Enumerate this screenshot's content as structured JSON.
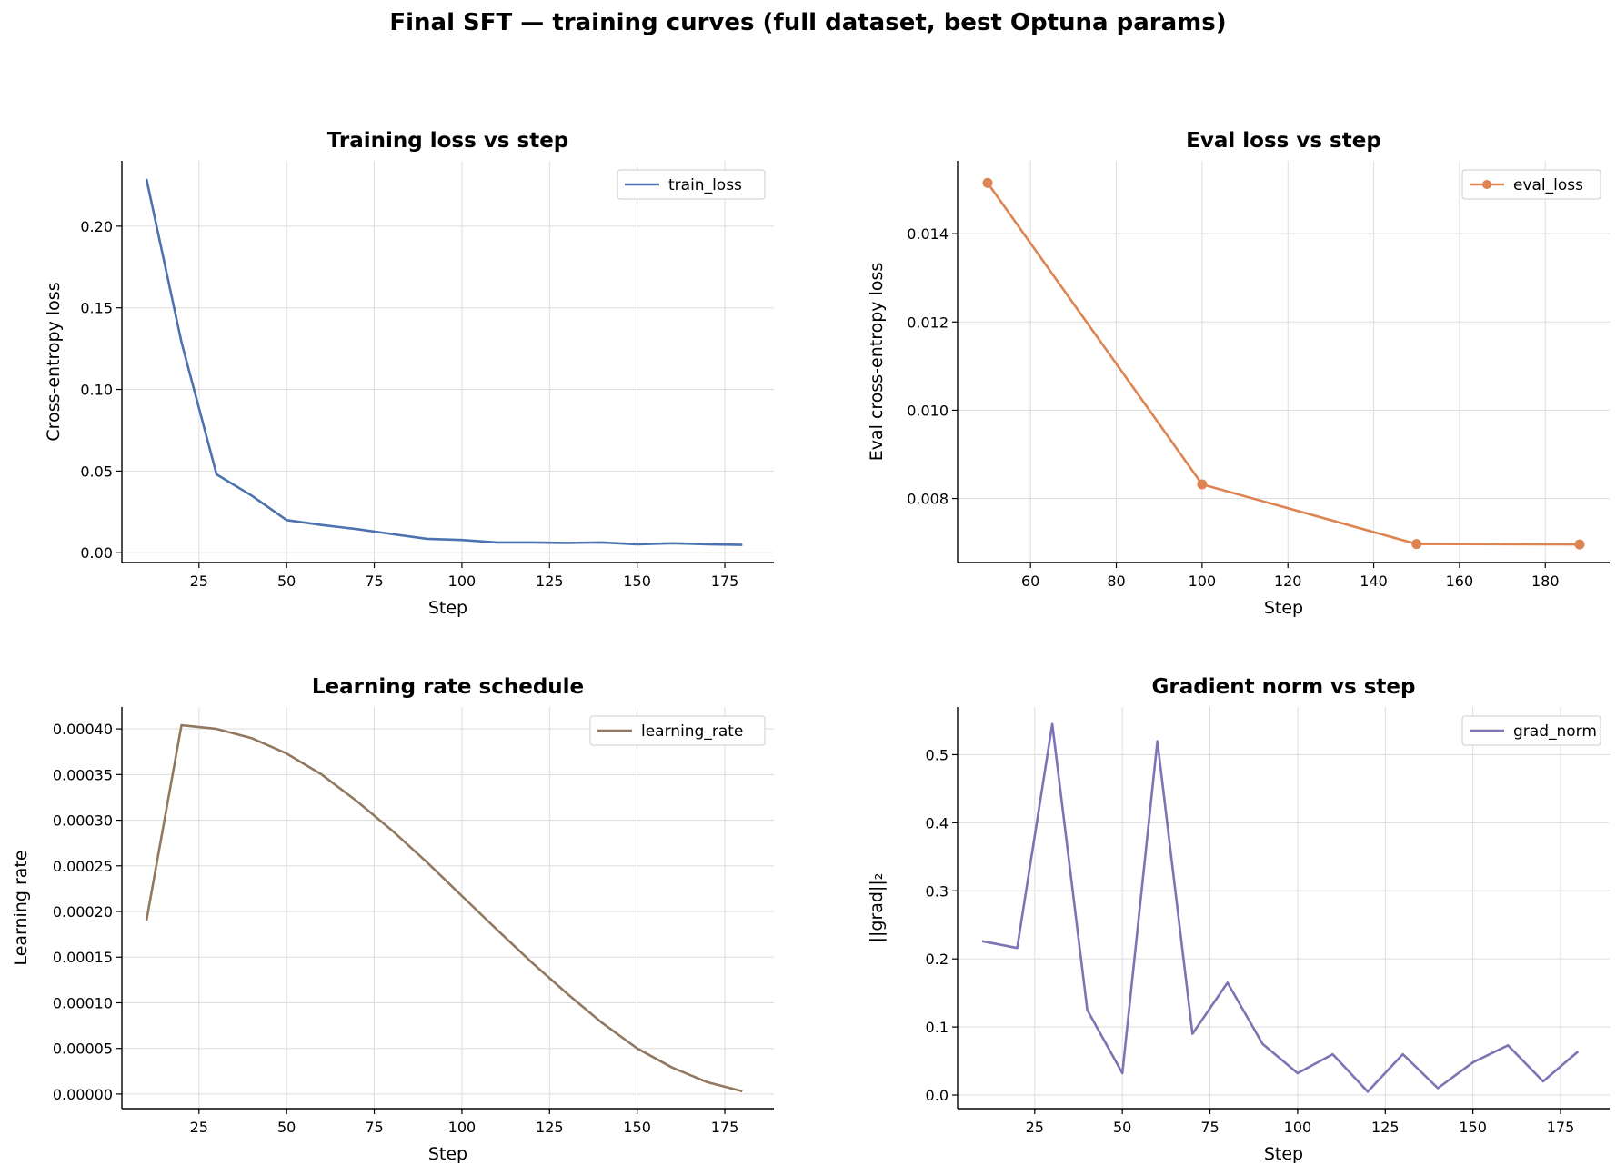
{
  "figure": {
    "title": "Final SFT — training curves (full dataset, best Optuna params)"
  },
  "chart_data": [
    {
      "type": "line",
      "title": "Training loss vs step",
      "xlabel": "Step",
      "ylabel": "Cross-entropy loss",
      "xlim": [
        3,
        189
      ],
      "ylim": [
        -0.006,
        0.24
      ],
      "xticks": [
        25,
        50,
        75,
        100,
        125,
        150,
        175
      ],
      "yticks": [
        0.0,
        0.05,
        0.1,
        0.15,
        0.2
      ],
      "ytick_decimals": 2,
      "grid": true,
      "legend": "top-right",
      "markers": false,
      "series": [
        {
          "name": "train_loss",
          "color": "#4c72b0",
          "x": [
            10,
            20,
            30,
            40,
            50,
            60,
            70,
            80,
            90,
            100,
            110,
            120,
            130,
            140,
            150,
            160,
            170,
            180
          ],
          "y": [
            0.229,
            0.129,
            0.048,
            0.035,
            0.02,
            0.017,
            0.0145,
            0.0115,
            0.0085,
            0.0078,
            0.0063,
            0.0063,
            0.006,
            0.0063,
            0.0052,
            0.0058,
            0.0052,
            0.0048
          ]
        }
      ]
    },
    {
      "type": "line",
      "title": "Eval loss vs step",
      "xlabel": "Step",
      "ylabel": "Eval cross-entropy loss",
      "xlim": [
        43,
        195
      ],
      "ylim": [
        0.00655,
        0.01565
      ],
      "xticks": [
        60,
        80,
        100,
        120,
        140,
        160,
        180
      ],
      "yticks": [
        0.008,
        0.01,
        0.012,
        0.014
      ],
      "ytick_decimals": 3,
      "grid": true,
      "legend": "top-right",
      "markers": true,
      "series": [
        {
          "name": "eval_loss",
          "color": "#dd8452",
          "x": [
            50,
            100,
            150,
            188
          ],
          "y": [
            0.01515,
            0.00832,
            0.00697,
            0.00696
          ]
        }
      ]
    },
    {
      "type": "line",
      "title": "Learning rate schedule",
      "xlabel": "Step",
      "ylabel": "Learning rate",
      "xlim": [
        3,
        189
      ],
      "ylim": [
        -1.6e-05,
        0.000424
      ],
      "xticks": [
        25,
        50,
        75,
        100,
        125,
        150,
        175
      ],
      "yticks": [
        0.0,
        5e-05,
        0.0001,
        0.00015,
        0.0002,
        0.00025,
        0.0003,
        0.00035,
        0.0004
      ],
      "ytick_decimals": 5,
      "grid": true,
      "legend": "top-right",
      "markers": false,
      "series": [
        {
          "name": "learning_rate",
          "color": "#937860",
          "x": [
            10,
            20,
            30,
            40,
            50,
            60,
            70,
            80,
            90,
            100,
            110,
            120,
            130,
            140,
            150,
            160,
            170,
            180
          ],
          "y": [
            0.00019,
            0.000404,
            0.0004,
            0.00039,
            0.000373,
            0.00035,
            0.000321,
            0.000289,
            0.000254,
            0.000217,
            0.00018,
            0.000144,
            0.00011,
            7.8e-05,
            5e-05,
            2.9e-05,
            1.3e-05,
            3e-06
          ]
        }
      ]
    },
    {
      "type": "line",
      "title": "Gradient norm vs step",
      "xlabel": "Step",
      "ylabel": "||grad||₂",
      "xlim": [
        3,
        189
      ],
      "ylim": [
        -0.02,
        0.57
      ],
      "xticks": [
        25,
        50,
        75,
        100,
        125,
        150,
        175
      ],
      "yticks": [
        0.0,
        0.1,
        0.2,
        0.3,
        0.4,
        0.5
      ],
      "ytick_decimals": 1,
      "grid": true,
      "legend": "top-right",
      "markers": false,
      "series": [
        {
          "name": "grad_norm",
          "color": "#8172b3",
          "x": [
            10,
            20,
            30,
            40,
            50,
            60,
            70,
            80,
            90,
            100,
            110,
            120,
            130,
            140,
            150,
            160,
            170,
            180
          ],
          "y": [
            0.226,
            0.216,
            0.545,
            0.125,
            0.032,
            0.52,
            0.09,
            0.165,
            0.075,
            0.032,
            0.06,
            0.005,
            0.06,
            0.01,
            0.048,
            0.073,
            0.02,
            0.064
          ]
        }
      ]
    }
  ]
}
